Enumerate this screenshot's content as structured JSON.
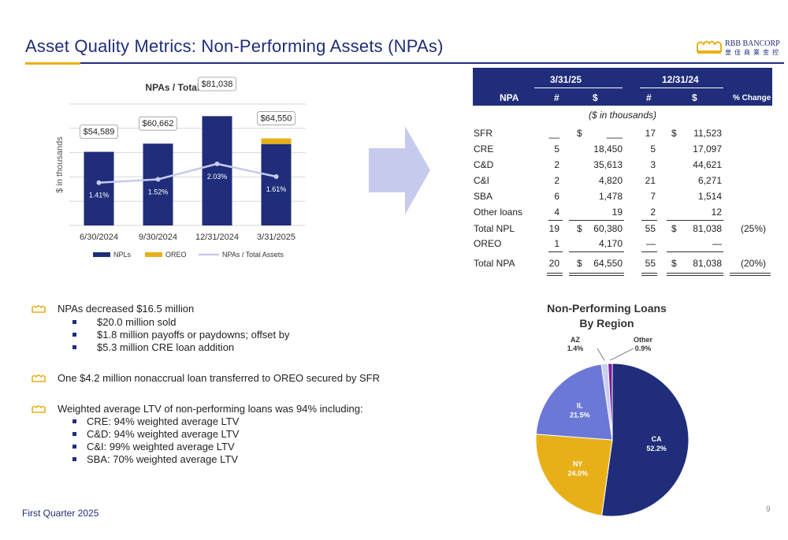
{
  "header": {
    "title": "Asset Quality Metrics:  Non-Performing Assets (NPAs)",
    "logo_name": "RBB BANCORP",
    "logo_chinese": "皇 佳 商 業 金 控",
    "logo_icon": "crown-icon"
  },
  "colors": {
    "navy": "#1f2d7a",
    "gold": "#e8b018",
    "lavender": "#c6cbee",
    "il_blue": "#6b78d6",
    "az_light": "#c9cdf0",
    "other_purple": "#7a1f9c"
  },
  "chart_data": [
    {
      "type": "bar",
      "title": "NPAs / Total Assets",
      "ylabel": "$ in thousands",
      "categories": [
        "6/30/2024",
        "9/30/2024",
        "12/31/2024",
        "3/31/2025"
      ],
      "series": [
        {
          "name": "NPLs",
          "values": [
            54589,
            60662,
            81038,
            60380
          ]
        },
        {
          "name": "OREO",
          "values": [
            0,
            0,
            0,
            4170
          ]
        },
        {
          "name": "NPAs / Total Assets",
          "values": [
            1.41,
            1.52,
            2.03,
            1.61
          ],
          "labels": [
            "1.41%",
            "1.52%",
            "2.03%",
            "1.61%"
          ]
        }
      ],
      "totals": [
        "$54,589",
        "$60,662",
        "$81,038",
        "$64,550"
      ],
      "ylim": [
        0,
        90000
      ],
      "grid": true,
      "legend_position": "bottom"
    },
    {
      "type": "pie",
      "title": "Non-Performing Loans By Region",
      "categories": [
        "CA",
        "NY",
        "IL",
        "AZ",
        "Other"
      ],
      "values": [
        52.2,
        24.0,
        21.5,
        1.4,
        0.9
      ],
      "labels": [
        "52.2%",
        "24.0%",
        "21.5%",
        "1.4%",
        "0.9%"
      ]
    }
  ],
  "table": {
    "header_npa": "NPA",
    "period1": "3/31/25",
    "period2": "12/31/24",
    "col_count": "#",
    "col_dollar": "$",
    "col_change": "% Change",
    "units": "($ in thousands)",
    "rows": [
      {
        "label": "SFR",
        "n1": "__",
        "d1": "$",
        "v1": "___",
        "n2": "17",
        "d2": "$",
        "v2": "11,523",
        "pct": ""
      },
      {
        "label": "CRE",
        "n1": "5",
        "d1": "",
        "v1": "18,450",
        "n2": "5",
        "d2": "",
        "v2": "17,097",
        "pct": ""
      },
      {
        "label": "C&D",
        "n1": "2",
        "d1": "",
        "v1": "35,613",
        "n2": "3",
        "d2": "",
        "v2": "44,621",
        "pct": ""
      },
      {
        "label": "C&I",
        "n1": "2",
        "d1": "",
        "v1": "4,820",
        "n2": "21",
        "d2": "",
        "v2": "6,271",
        "pct": ""
      },
      {
        "label": "SBA",
        "n1": "6",
        "d1": "",
        "v1": "1,478",
        "n2": "7",
        "d2": "",
        "v2": "1,514",
        "pct": ""
      },
      {
        "label": "Other loans",
        "n1": "4",
        "d1": "",
        "v1": "19",
        "n2": "2",
        "d2": "",
        "v2": "12",
        "pct": ""
      },
      {
        "label": "Total NPL",
        "n1": "19",
        "d1": "$",
        "v1": "60,380",
        "n2": "55",
        "d2": "$",
        "v2": "81,038",
        "pct": "(25%)"
      },
      {
        "label": "OREO",
        "n1": "1",
        "d1": "",
        "v1": "4,170",
        "n2": "—",
        "d2": "",
        "v2": "—",
        "pct": ""
      },
      {
        "label": "Total NPA",
        "n1": "20",
        "d1": "$",
        "v1": "64,550",
        "n2": "55",
        "d2": "$",
        "v2": "81,038",
        "pct": "(20%)"
      }
    ]
  },
  "bullets": [
    {
      "text": "NPAs decreased $16.5 million",
      "subs": [
        "$20.0 million sold",
        "$1.8 million payoffs or paydowns; offset by",
        "$5.3 million CRE loan addition"
      ]
    },
    {
      "text": "One $4.2 million  nonaccrual loan transferred to OREO secured by SFR",
      "subs": []
    },
    {
      "text": "Weighted average LTV of non-performing loans was 94% including:",
      "subs": [
        "CRE: 94% weighted average LTV",
        "C&D: 94% weighted average LTV",
        "C&I: 99% weighted average LTV",
        "SBA: 70% weighted average LTV"
      ]
    }
  ],
  "footer": {
    "quarter": "First Quarter 2025",
    "page": "9"
  }
}
